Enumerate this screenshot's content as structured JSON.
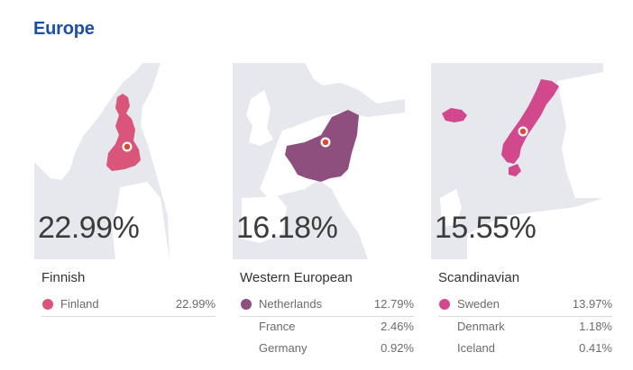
{
  "region_title": "Europe",
  "cards": [
    {
      "map_label": "Finland map",
      "percentage": "22.99%",
      "title": "Finnish",
      "rows": [
        {
          "name": "Finland",
          "value": "22.99%",
          "color": "#d9567a"
        }
      ]
    },
    {
      "map_label": "Western Europe map",
      "percentage": "16.18%",
      "title": "Western European",
      "rows": [
        {
          "name": "Netherlands",
          "value": "12.79%",
          "color": "#8e4f7e"
        },
        {
          "name": "France",
          "value": "2.46%"
        },
        {
          "name": "Germany",
          "value": "0.92%"
        }
      ]
    },
    {
      "map_label": "Scandinavia map",
      "percentage": "15.55%",
      "title": "Scandinavian",
      "rows": [
        {
          "name": "Sweden",
          "value": "13.97%",
          "color": "#d1488c"
        },
        {
          "name": "Denmark",
          "value": "1.18%"
        },
        {
          "name": "Iceland",
          "value": "0.41%"
        }
      ]
    }
  ]
}
